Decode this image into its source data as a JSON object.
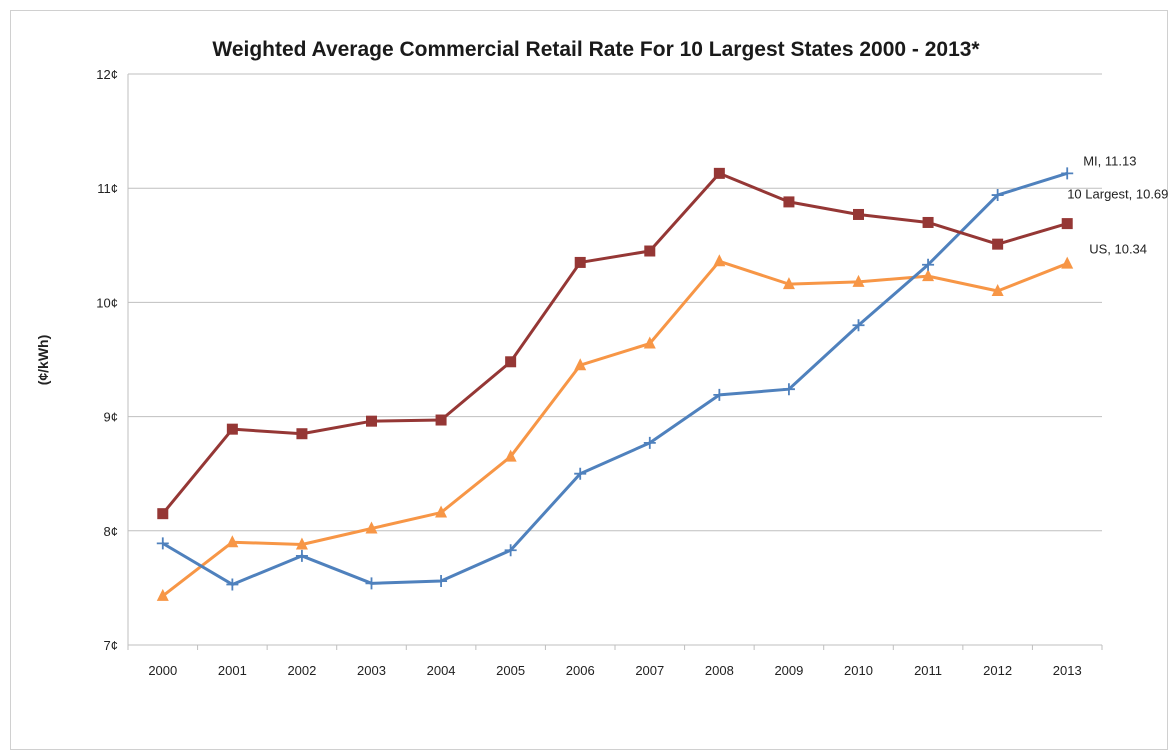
{
  "chart_data": {
    "type": "line",
    "title": "Weighted Average Commercial Retail Rate For 10 Largest States 2000 - 2013*",
    "xlabel": "",
    "ylabel": "(¢/kWh)",
    "categories": [
      "2000",
      "2001",
      "2002",
      "2003",
      "2004",
      "2005",
      "2006",
      "2007",
      "2008",
      "2009",
      "2010",
      "2011",
      "2012",
      "2013"
    ],
    "ylim": [
      7,
      12
    ],
    "yticks": [
      {
        "value": 7,
        "label": "7¢"
      },
      {
        "value": 8,
        "label": "8¢"
      },
      {
        "value": 9,
        "label": "9¢"
      },
      {
        "value": 10,
        "label": "10¢"
      },
      {
        "value": 11,
        "label": "11¢"
      },
      {
        "value": 12,
        "label": "12¢"
      }
    ],
    "grid": true,
    "series": [
      {
        "name": "10 Largest",
        "color": "#953735",
        "marker": "square",
        "values": [
          8.15,
          8.89,
          8.85,
          8.96,
          8.97,
          9.48,
          10.35,
          10.45,
          11.13,
          10.88,
          10.77,
          10.7,
          10.51,
          10.69
        ],
        "end_label": "10 Largest, 10.69"
      },
      {
        "name": "US",
        "color": "#f79646",
        "marker": "triangle",
        "values": [
          7.43,
          7.9,
          7.88,
          8.02,
          8.16,
          8.65,
          9.45,
          9.64,
          10.36,
          10.16,
          10.18,
          10.23,
          10.1,
          10.34
        ],
        "end_label": "US, 10.34"
      },
      {
        "name": "MI",
        "color": "#4f81bd",
        "marker": "plus",
        "values": [
          7.89,
          7.53,
          7.78,
          7.54,
          7.56,
          7.83,
          8.5,
          8.77,
          9.19,
          9.24,
          9.8,
          10.33,
          10.94,
          11.13
        ],
        "end_label": "MI, 11.13"
      }
    ]
  }
}
